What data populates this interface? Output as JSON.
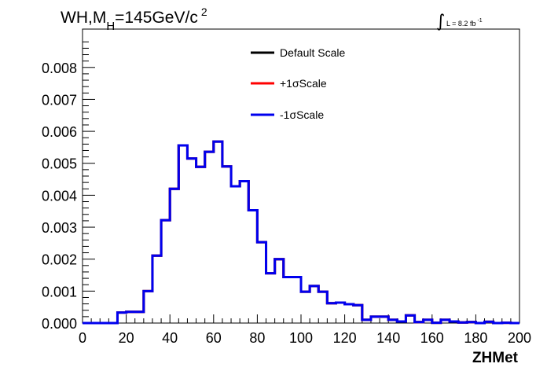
{
  "chart_data": {
    "type": "line",
    "title": {
      "prefix": "WH,M",
      "sub": "H",
      "main": "=145GeV/c",
      "sup": "2"
    },
    "lumi": {
      "integral": "∫",
      "text": "L = 8.2 fb",
      "sup": "-1"
    },
    "xlabel": "ZHMet",
    "ylabel": "",
    "xlim": [
      0,
      200
    ],
    "ylim": [
      0,
      0.0092
    ],
    "x_ticks": [
      "0",
      "20",
      "40",
      "60",
      "80",
      "100",
      "120",
      "140",
      "160",
      "180",
      "200"
    ],
    "y_ticks": [
      "0.000",
      "0.001",
      "0.002",
      "0.003",
      "0.004",
      "0.005",
      "0.006",
      "0.007",
      "0.008"
    ],
    "grid": false,
    "legend_placement": "top-right",
    "bin_edges": [
      0,
      4,
      8,
      12,
      16,
      20,
      24,
      28,
      32,
      36,
      40,
      44,
      48,
      52,
      56,
      60,
      64,
      68,
      72,
      76,
      80,
      84,
      88,
      92,
      96,
      100,
      104,
      108,
      112,
      116,
      120,
      124,
      128,
      132,
      136,
      140,
      144,
      148,
      152,
      156,
      160,
      164,
      168,
      172,
      176,
      180,
      184,
      188,
      192,
      196,
      200
    ],
    "series": [
      {
        "name": "Default Scale",
        "color": "#000000",
        "values": [
          0.0,
          0.0,
          0.0,
          0.0,
          0.00033,
          0.00035,
          0.00035,
          0.001,
          0.00211,
          0.00322,
          0.0042,
          0.00556,
          0.00515,
          0.00489,
          0.00536,
          0.00568,
          0.0049,
          0.00428,
          0.00444,
          0.00353,
          0.00253,
          0.00156,
          0.002,
          0.00144,
          0.00144,
          0.00098,
          0.00116,
          0.00098,
          0.00062,
          0.00064,
          0.00059,
          0.00056,
          0.0001,
          0.0002,
          0.0002,
          0.0001,
          5e-05,
          0.00024,
          3e-05,
          0.0001,
          1e-05,
          0.0001,
          5e-05,
          2e-05,
          3e-05,
          0.0,
          4e-05,
          0.0,
          1e-05,
          0.0
        ]
      },
      {
        "name": "+1σScale",
        "color": "#ff0000",
        "values": [
          0.0,
          0.0,
          0.0,
          0.0,
          0.00033,
          0.00035,
          0.00035,
          0.001,
          0.00211,
          0.00322,
          0.0042,
          0.00556,
          0.00515,
          0.00489,
          0.00536,
          0.00568,
          0.0049,
          0.00428,
          0.00444,
          0.00353,
          0.00253,
          0.00156,
          0.002,
          0.00144,
          0.00144,
          0.00098,
          0.00116,
          0.00098,
          0.00062,
          0.00064,
          0.00059,
          0.00056,
          0.0001,
          0.0002,
          0.0002,
          0.0001,
          5e-05,
          0.00024,
          3e-05,
          0.0001,
          1e-05,
          0.0001,
          5e-05,
          2e-05,
          3e-05,
          0.0,
          4e-05,
          0.0,
          1e-05,
          0.0
        ]
      },
      {
        "name": "-1σScale",
        "color": "#0000ee",
        "values": [
          0.0,
          0.0,
          0.0,
          0.0,
          0.00033,
          0.00035,
          0.00035,
          0.001,
          0.00211,
          0.00322,
          0.0042,
          0.00556,
          0.00515,
          0.00489,
          0.00536,
          0.00568,
          0.0049,
          0.00428,
          0.00444,
          0.00353,
          0.00253,
          0.00156,
          0.002,
          0.00144,
          0.00144,
          0.00098,
          0.00116,
          0.00098,
          0.00062,
          0.00064,
          0.00059,
          0.00056,
          0.0001,
          0.0002,
          0.0002,
          0.0001,
          5e-05,
          0.00024,
          3e-05,
          0.0001,
          1e-05,
          0.0001,
          5e-05,
          2e-05,
          3e-05,
          0.0,
          4e-05,
          0.0,
          1e-05,
          0.0
        ]
      }
    ]
  }
}
